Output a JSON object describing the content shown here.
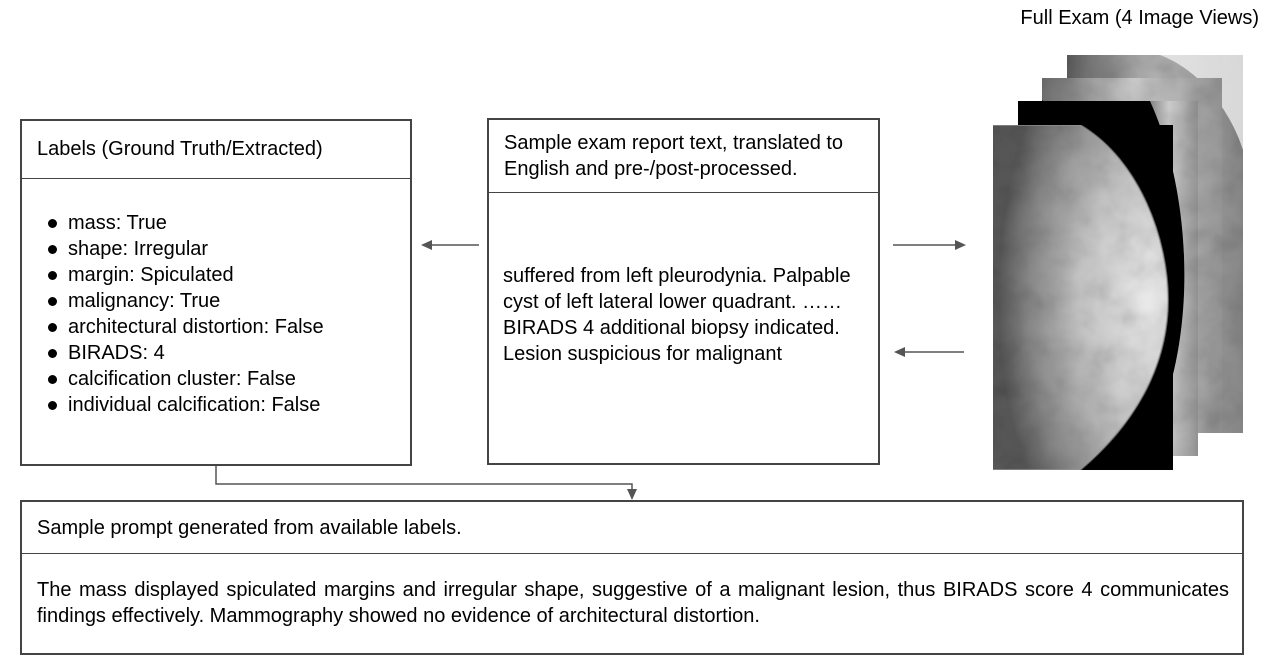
{
  "labels_box": {
    "title": "Labels (Ground Truth/Extracted)",
    "items": [
      "mass: True",
      "shape: Irregular",
      "margin: Spiculated",
      "malignancy: True",
      "architectural distortion: False",
      "BIRADS: 4",
      "calcification cluster: False",
      "individual calcification: False"
    ]
  },
  "report_box": {
    "title": "Sample exam report text, translated to English and pre-/post-processed.",
    "text": "suffered from left pleurodynia. Palpable cyst of left lateral lower quadrant. ……  BIRADS 4  additional biopsy indicated. Lesion suspicious for malignant"
  },
  "exam": {
    "title": "Full Exam (4 Image Views)"
  },
  "prompt_box": {
    "title": "Sample prompt generated from available labels.",
    "text": "The mass displayed spiculated margins and irregular shape, suggestive of a malignant lesion, thus BIRADS score 4 communicates findings effectively. Mammography showed no evidence of architectural distortion."
  },
  "colors": {
    "border": "#444444",
    "arrow": "#555555",
    "image_background": "#000000"
  }
}
